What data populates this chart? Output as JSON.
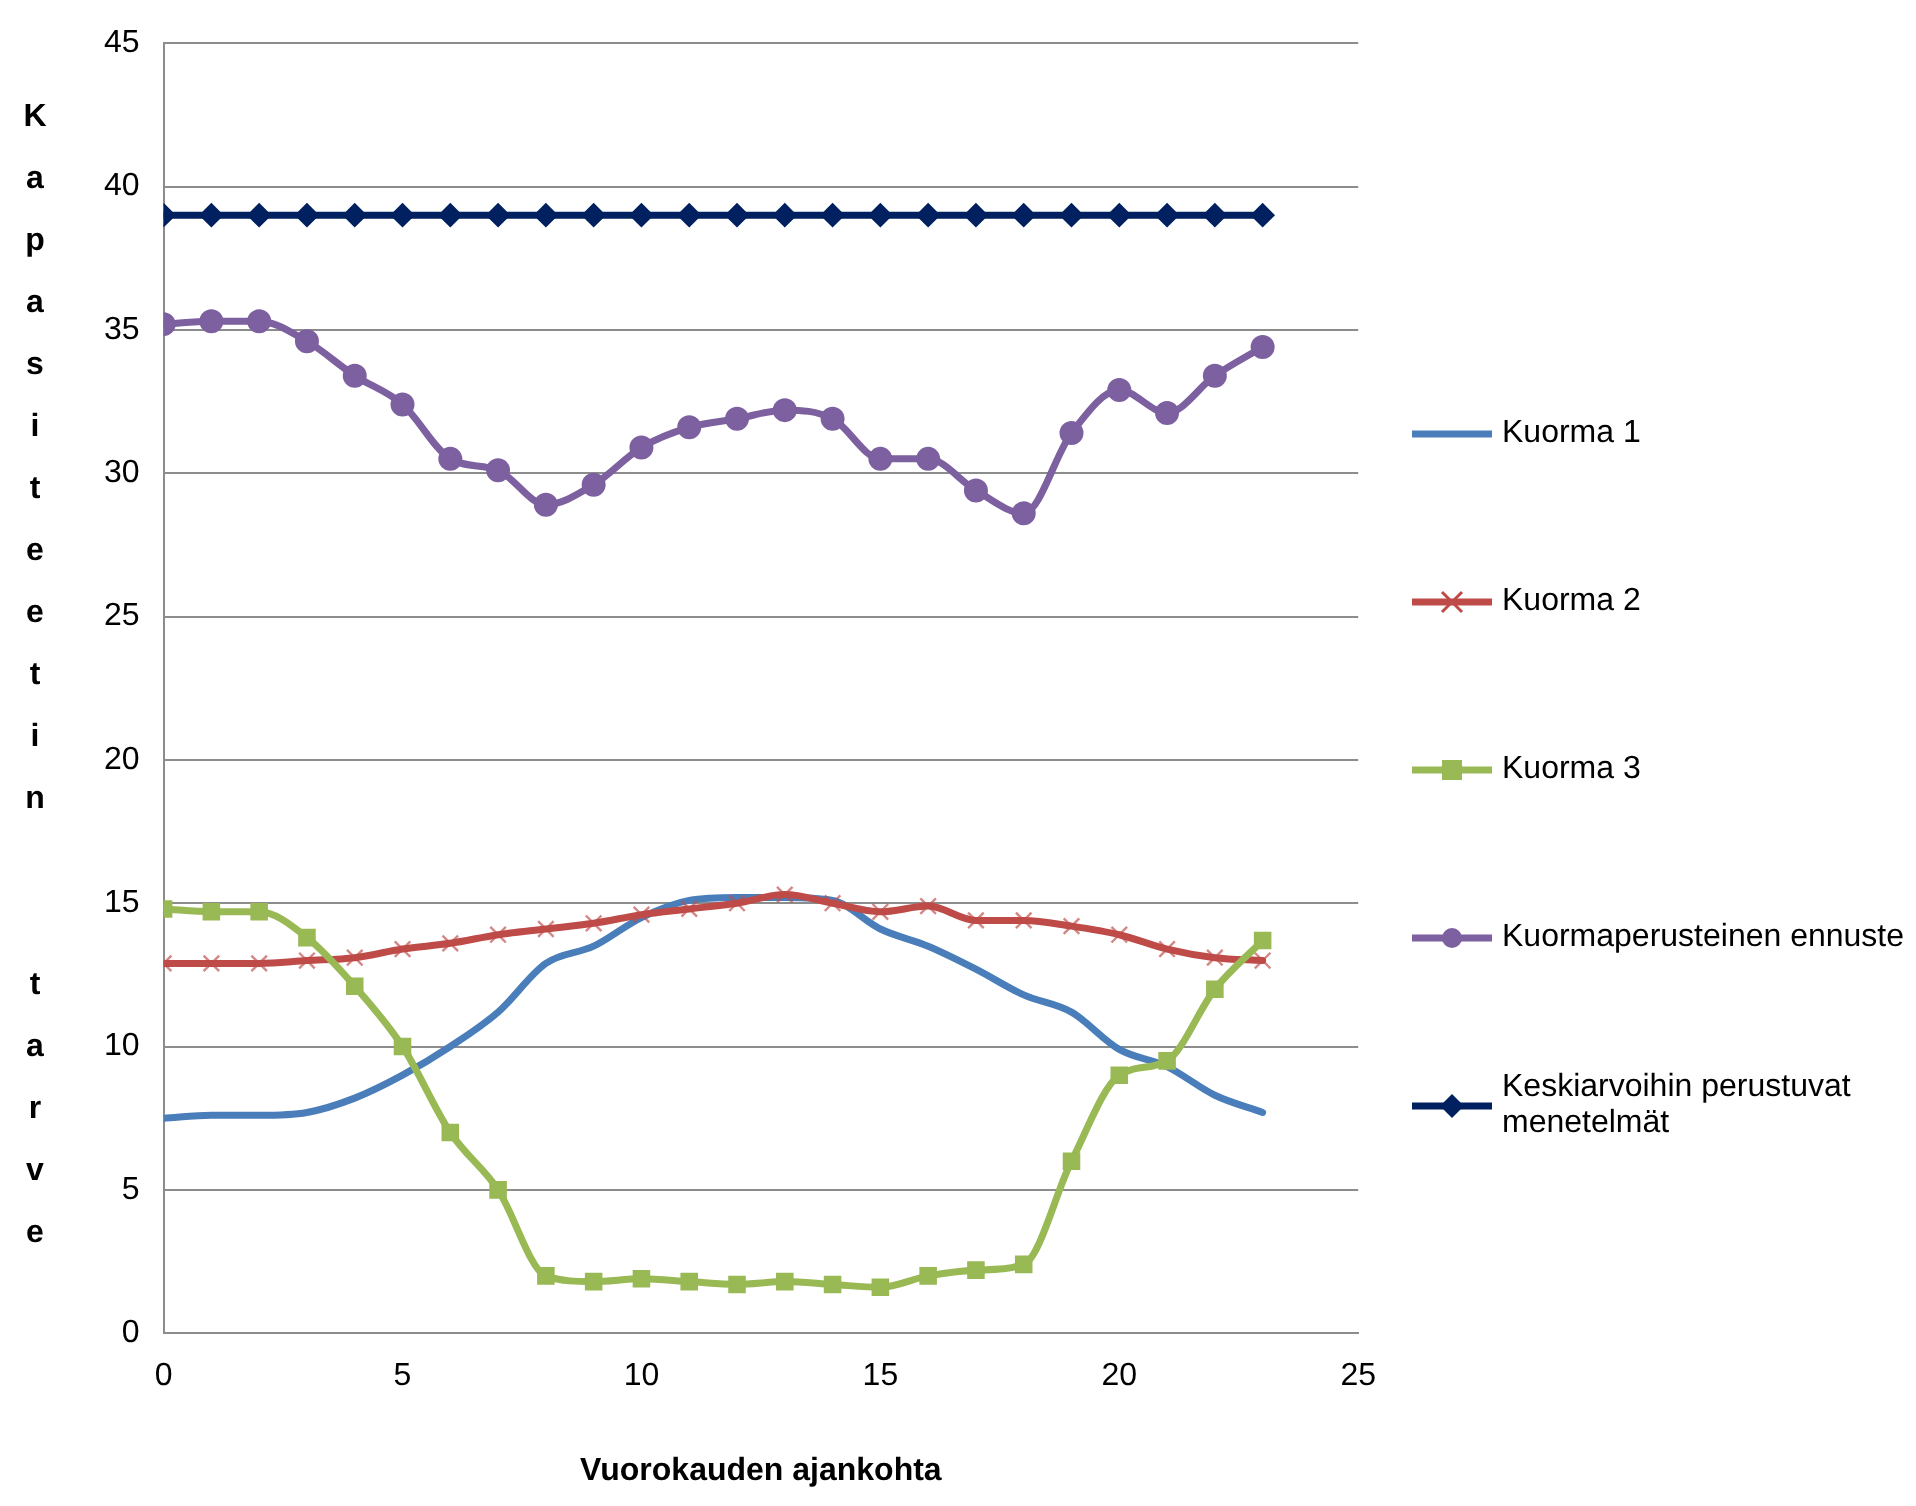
{
  "chart_data": {
    "type": "line",
    "xlabel": "Vuorokauden ajankohta",
    "ylabel": "Kapasiteetin  tarve",
    "x": [
      0,
      1,
      2,
      3,
      4,
      5,
      6,
      7,
      8,
      9,
      10,
      11,
      12,
      13,
      14,
      15,
      16,
      17,
      18,
      19,
      20,
      21,
      22,
      23
    ],
    "series": [
      {
        "name": "Kuorma 1",
        "color": "#4a7ebb",
        "marker": "none",
        "values": [
          7.5,
          7.6,
          7.6,
          7.7,
          8.2,
          9,
          10,
          11.2,
          12.9,
          13.5,
          14.5,
          15.1,
          15.2,
          15.2,
          15.1,
          14.1,
          13.5,
          12.7,
          11.8,
          11.2,
          9.9,
          9.3,
          8.3,
          7.7
        ]
      },
      {
        "name": "Kuorma 2",
        "color": "#be4b48",
        "marker": "cross",
        "values": [
          12.9,
          12.9,
          12.9,
          13,
          13.1,
          13.4,
          13.6,
          13.9,
          14.1,
          14.3,
          14.6,
          14.8,
          15,
          15.3,
          15,
          14.7,
          14.9,
          14.4,
          14.4,
          14.2,
          13.9,
          13.4,
          13.1,
          13
        ]
      },
      {
        "name": "Kuorma 3",
        "color": "#98b954",
        "marker": "square",
        "values": [
          14.8,
          14.7,
          14.7,
          13.8,
          12.1,
          10,
          7,
          5,
          2,
          1.8,
          1.9,
          1.8,
          1.7,
          1.8,
          1.7,
          1.6,
          2,
          2.2,
          2.4,
          6,
          9,
          9.5,
          12,
          13.7
        ]
      },
      {
        "name": "Kuormaperusteinen ennuste",
        "color": "#7d60a0",
        "marker": "circle",
        "values": [
          35.2,
          35.3,
          35.3,
          34.6,
          33.4,
          32.4,
          30.5,
          30.1,
          28.9,
          29.6,
          30.9,
          31.6,
          31.9,
          32.2,
          31.9,
          30.5,
          30.5,
          29.4,
          28.6,
          31.4,
          32.9,
          32.1,
          33.4,
          34.4
        ]
      },
      {
        "name": "Keskiarvoihin perustuvat menetelmät",
        "color": "#002060",
        "marker": "diamond",
        "values": [
          39,
          39,
          39,
          39,
          39,
          39,
          39,
          39,
          39,
          39,
          39,
          39,
          39,
          39,
          39,
          39,
          39,
          39,
          39,
          39,
          39,
          39,
          39,
          39
        ]
      }
    ],
    "xlim": [
      0,
      25
    ],
    "xticks": [
      0,
      5,
      10,
      15,
      20,
      25
    ],
    "ylim": [
      0,
      45
    ],
    "yticks": [
      0,
      5,
      10,
      15,
      20,
      25,
      30,
      35,
      40,
      45
    ],
    "grid": "y",
    "legend": "right"
  }
}
